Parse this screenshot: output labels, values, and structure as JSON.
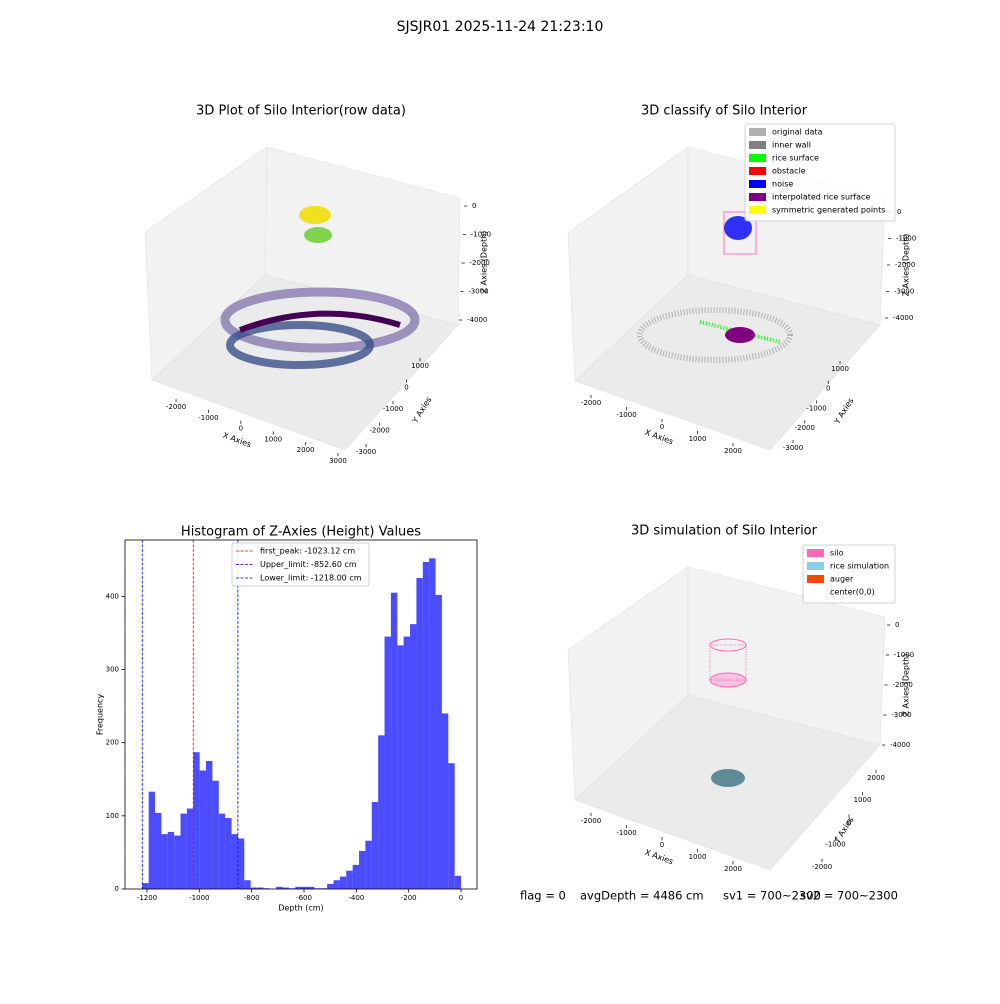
{
  "title": "SJSJR01 2025-11-24 21:23:10",
  "footer": [
    "flag = 0",
    "avgDepth = 4486 cm",
    "sv1 = 700~2300",
    "sv2 = 700~2300"
  ],
  "chart_data": [
    {
      "type": "scatter3d",
      "title": "3D Plot of Silo Interior(row data)",
      "xlabel": "X Axies",
      "ylabel": "Y Axies",
      "zlabel": "Z Axies (Depth)",
      "xlim": [
        -2600,
        3300
      ],
      "xticks": [
        -2000,
        -1000,
        0,
        1000,
        2000,
        3000
      ],
      "ylim": [
        -3300,
        1400
      ],
      "yticks": [
        -3000,
        -2000,
        -1000,
        0,
        1000
      ],
      "zlim": [
        -4600,
        300
      ],
      "zticks": [
        -4000,
        -3000,
        -2000,
        -1000,
        0
      ]
    },
    {
      "type": "scatter3d",
      "title": "3D classify of Silo Interior",
      "xlabel": "X Axies",
      "ylabel": "Y Axies",
      "zlabel": "Z Axies (Depth)",
      "xlim": [
        -2600,
        2600
      ],
      "xticks": [
        -2000,
        -1000,
        0,
        1000,
        2000
      ],
      "ylim": [
        -3300,
        1400
      ],
      "yticks": [
        -3000,
        -2000,
        -1000,
        0,
        1000
      ],
      "zlim": [
        -4600,
        300
      ],
      "zticks": [
        -4000,
        -3000,
        -2000,
        -1000,
        0
      ],
      "legend": [
        {
          "name": "original data",
          "color": "#b0b0b0"
        },
        {
          "name": "inner wall",
          "color": "#808080"
        },
        {
          "name": "rice surface",
          "color": "#00ff00"
        },
        {
          "name": "obstacle",
          "color": "#ff0000"
        },
        {
          "name": "noise",
          "color": "#0000ff"
        },
        {
          "name": "interpolated rice surface",
          "color": "#800080"
        },
        {
          "name": "symmetric generated points",
          "color": "#ffff00"
        }
      ]
    },
    {
      "type": "histogram",
      "title": "Histogram of Z-Axies (Height) Values",
      "xlabel": "Depth (cm)",
      "ylabel": "Frequency",
      "color": "#0000ff",
      "bins": [
        -1218,
        -1193.64,
        -1169.28,
        -1144.92,
        -1120.56,
        -1096.2,
        -1071.84,
        -1047.48,
        -1023.12,
        -998.76,
        -974.4,
        -950.04,
        -925.68,
        -901.32,
        -876.96,
        -852.6,
        -828.24,
        -803.88,
        -779.52,
        -755.16,
        -730.8,
        -706.44,
        -682.08,
        -657.72,
        -633.36,
        -609,
        -584.64,
        -560.28,
        -535.92,
        -511.56,
        -487.2,
        -462.84,
        -438.48,
        -414.12,
        -389.76,
        -365.4,
        -341.04,
        -316.68,
        -292.32,
        -267.96,
        -243.6,
        -219.24,
        -194.88,
        -170.52,
        -146.16,
        -121.8,
        -97.44,
        -73.08,
        -48.72,
        -24.36,
        0
      ],
      "values": [
        8,
        133,
        104,
        75,
        78,
        73,
        103,
        110,
        187,
        162,
        175,
        148,
        103,
        97,
        75,
        69,
        12,
        2,
        2,
        1,
        0,
        3,
        2,
        1,
        3,
        3,
        3,
        1,
        1,
        7,
        12,
        17,
        25,
        33,
        52,
        66,
        119,
        210,
        345,
        405,
        333,
        345,
        362,
        425,
        447,
        452,
        402,
        240,
        172,
        18
      ],
      "xlim": [
        -1284,
        61
      ],
      "xticks": [
        -1200,
        -1000,
        -800,
        -600,
        -400,
        -200,
        0
      ],
      "ylim": [
        0,
        477
      ],
      "yticks": [
        0,
        100,
        200,
        300,
        400
      ],
      "lines": [
        {
          "name": "first_peak: -1023.12 cm",
          "value": -1023.12,
          "color": "#ff0000"
        },
        {
          "name": "Upper_limit: -852.60 cm",
          "value": -852.6,
          "color": "#0000ff"
        },
        {
          "name": "Lower_limit: -1218.00 cm",
          "value": -1218,
          "color": "#0000ff"
        }
      ]
    },
    {
      "type": "scatter3d",
      "title": "3D simulation of Silo Interior",
      "xlabel": "X Axies",
      "ylabel": "Y Axies",
      "zlabel": "Z Axies (Depth)",
      "xlim": [
        -2600,
        2600
      ],
      "xticks": [
        -2000,
        -1000,
        0,
        1000,
        2000
      ],
      "ylim": [
        -2400,
        2400
      ],
      "yticks": [
        -2000,
        -1000,
        0,
        1000,
        2000
      ],
      "zlim": [
        -4600,
        300
      ],
      "zticks": [
        -4000,
        -3000,
        -2000,
        -1000,
        0
      ],
      "legend": [
        {
          "name": "silo",
          "color": "#ff69b4"
        },
        {
          "name": "rice simulation",
          "color": "#87ceeb"
        },
        {
          "name": "auger",
          "color": "#ff4500"
        },
        {
          "name": "center(0,0)",
          "color": "#ffffff"
        }
      ]
    }
  ]
}
